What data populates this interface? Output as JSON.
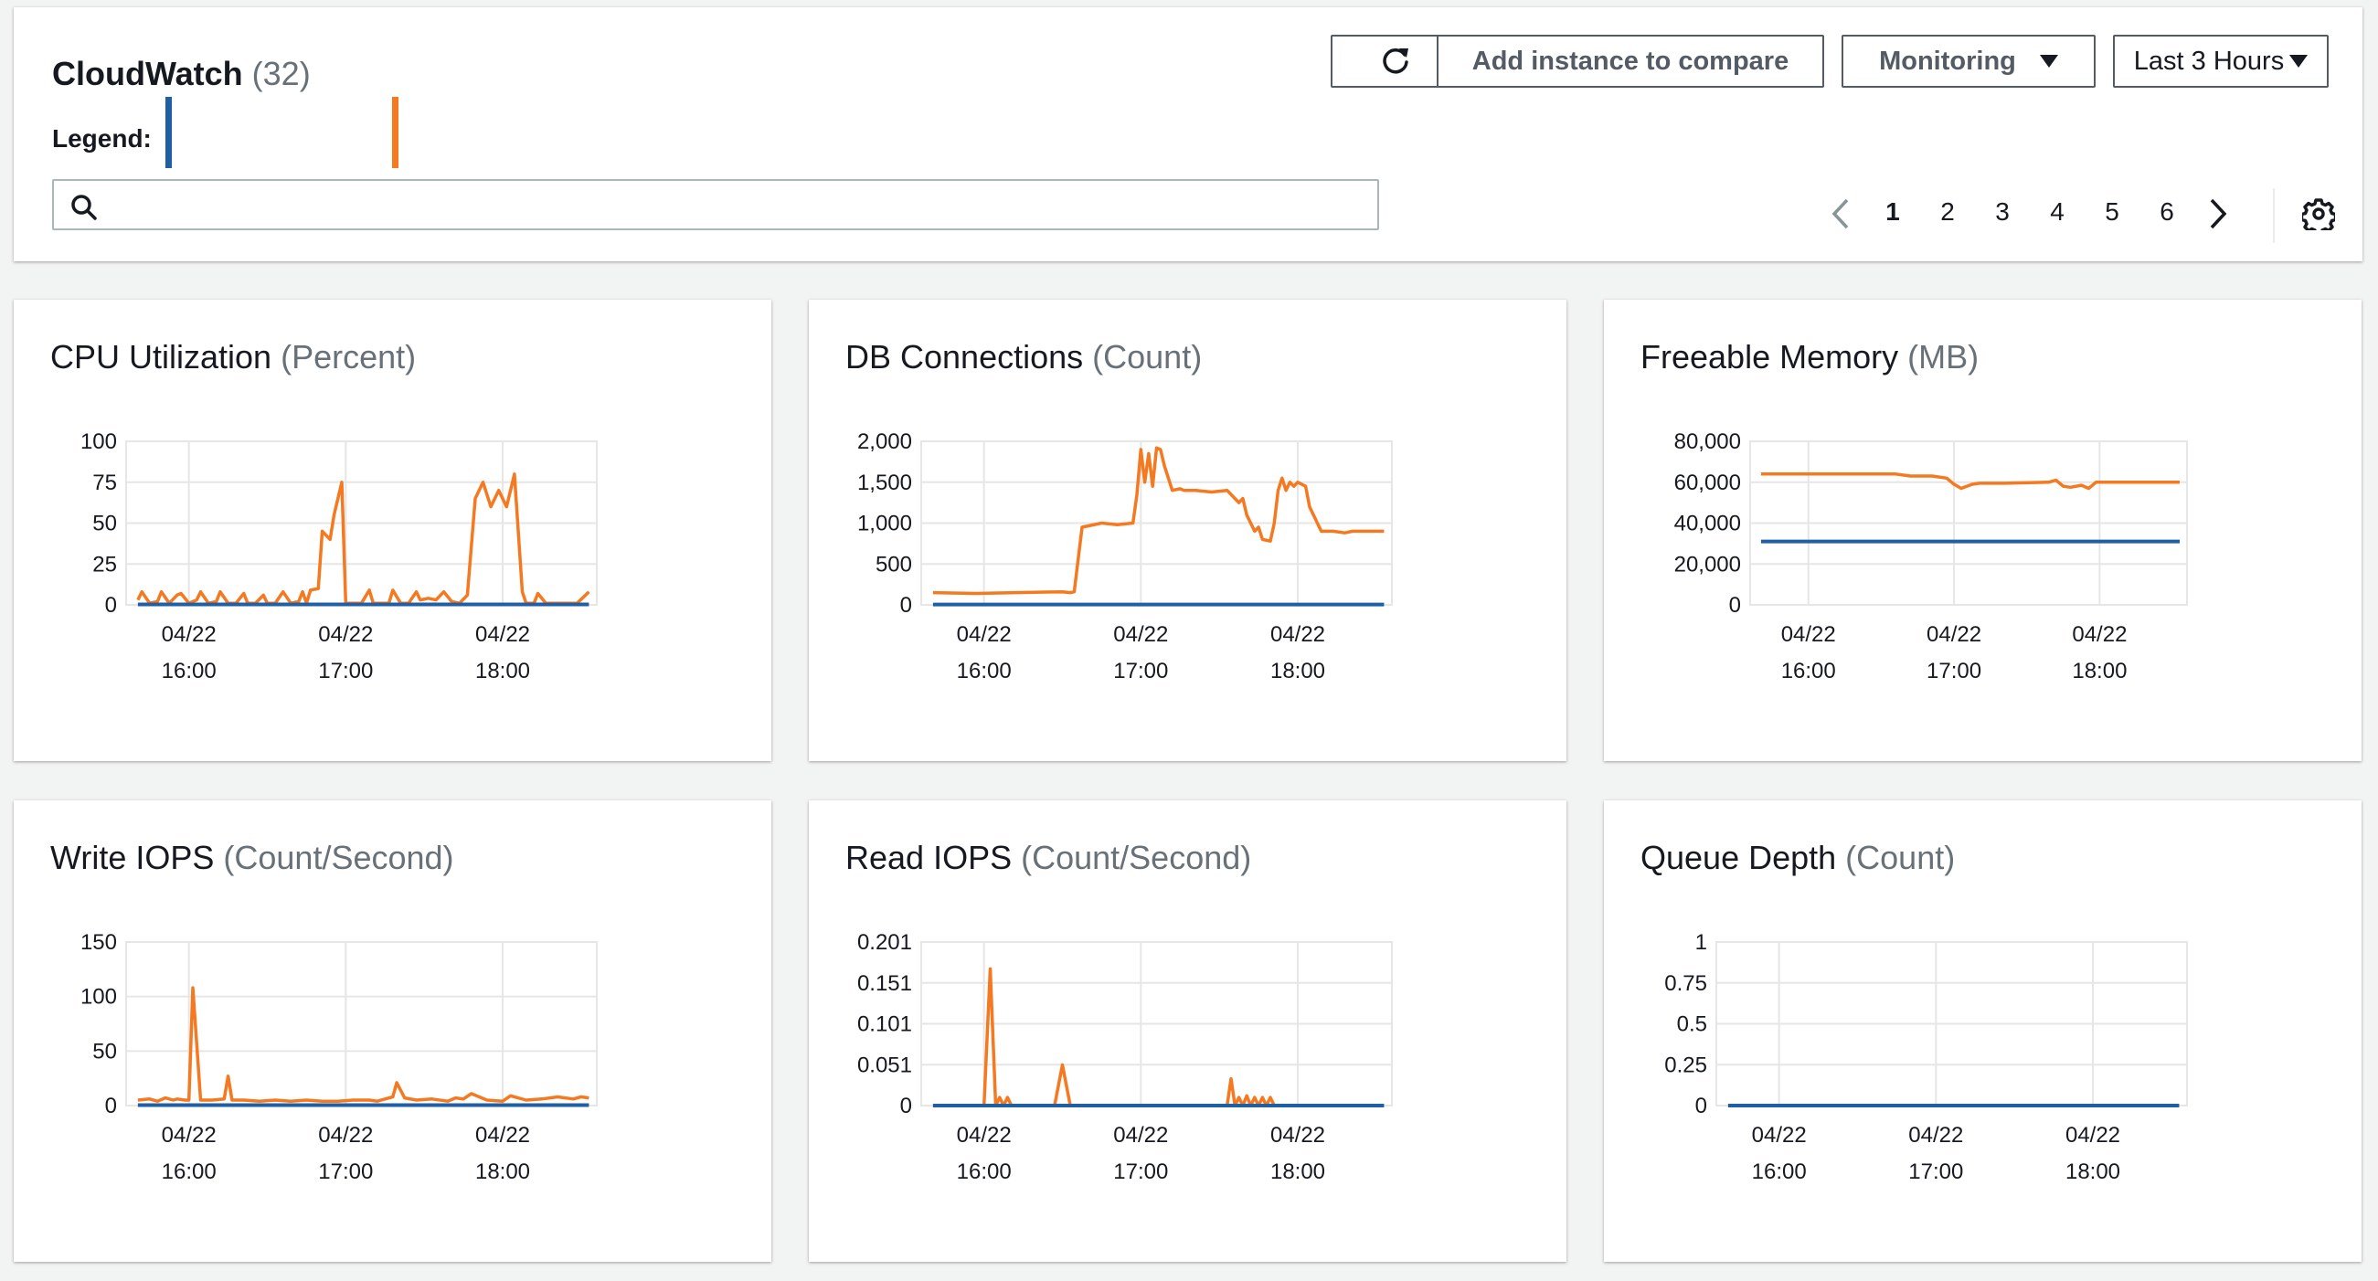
{
  "header": {
    "title": "CloudWatch",
    "count": "(32)",
    "legend_label": "Legend:",
    "legend_colors": [
      "#1f5fa6",
      "#f47920"
    ],
    "search": {
      "value": "",
      "placeholder": ""
    },
    "buttons": {
      "refresh_icon": "refresh-icon",
      "add_instance": "Add instance to compare",
      "monitoring": "Monitoring",
      "time_range": "Last 3 Hours"
    },
    "pagination": {
      "pages": [
        "1",
        "2",
        "3",
        "4",
        "5",
        "6"
      ],
      "current": "1",
      "prev_icon": "chevron-left-icon",
      "next_icon": "chevron-right-icon",
      "settings_icon": "gear-icon"
    }
  },
  "colors": {
    "series_blue": "#1f5fa6",
    "series_orange": "#f47920",
    "grid": "#e6e6e6",
    "muted_text": "#687078"
  },
  "charts": [
    {
      "id": "cpu",
      "title": "CPU Utilization",
      "unit": "(Percent)",
      "chart_data": {
        "type": "line",
        "y_ticks": [
          "100",
          "75",
          "50",
          "25",
          "0"
        ],
        "ylim": [
          0,
          100
        ],
        "x_ticks": [
          [
            "04/22",
            "16:00"
          ],
          [
            "04/22",
            "17:00"
          ],
          [
            "04/22",
            "18:00"
          ]
        ],
        "x_tick_positions": [
          15.6,
          17.6,
          19.6
        ],
        "xlim": [
          14.8,
          20.8
        ],
        "series": [
          {
            "color": "#f47920",
            "x": [
              14.95,
              15.0,
              15.1,
              15.2,
              15.25,
              15.35,
              15.45,
              15.5,
              15.6,
              15.7,
              15.75,
              15.85,
              15.95,
              16.0,
              16.1,
              16.2,
              16.3,
              16.35,
              16.45,
              16.55,
              16.6,
              16.7,
              16.8,
              16.9,
              17.0,
              17.05,
              17.1,
              17.15,
              17.25,
              17.3,
              17.4,
              17.45,
              17.55,
              17.6,
              17.7,
              17.8,
              17.9,
              17.95,
              18.05,
              18.15,
              18.2,
              18.3,
              18.4,
              18.5,
              18.55,
              18.65,
              18.75,
              18.85,
              18.95,
              19.05,
              19.15,
              19.25,
              19.35,
              19.45,
              19.55,
              19.65,
              19.75,
              19.85,
              19.9,
              20.0,
              20.05,
              20.15,
              20.25,
              20.35,
              20.45,
              20.55,
              20.7
            ],
            "values": [
              3,
              8,
              1,
              2,
              8,
              1,
              6,
              7,
              1,
              3,
              8,
              1,
              2,
              8,
              1,
              1,
              7,
              1,
              1,
              6,
              1,
              1,
              8,
              1,
              2,
              8,
              1,
              9,
              10,
              45,
              40,
              55,
              75,
              1,
              1,
              1,
              9,
              1,
              1,
              1,
              9,
              1,
              1,
              8,
              3,
              4,
              3,
              8,
              2,
              1,
              6,
              65,
              75,
              60,
              70,
              60,
              80,
              8,
              1,
              1,
              7,
              1,
              1,
              1,
              1,
              1,
              8
            ]
          },
          {
            "color": "#1f5fa6",
            "x": [
              14.95,
              20.7
            ],
            "values": [
              0.3,
              0.3
            ]
          }
        ]
      }
    },
    {
      "id": "db",
      "title": "DB Connections",
      "unit": "(Count)",
      "chart_data": {
        "type": "line",
        "y_ticks": [
          "2,000",
          "1,500",
          "1,000",
          "500",
          "0"
        ],
        "ylim": [
          0,
          2000
        ],
        "x_ticks": [
          [
            "04/22",
            "16:00"
          ],
          [
            "04/22",
            "17:00"
          ],
          [
            "04/22",
            "18:00"
          ]
        ],
        "x_tick_positions": [
          15.6,
          17.6,
          19.6
        ],
        "xlim": [
          14.8,
          20.8
        ],
        "series": [
          {
            "color": "#f47920",
            "x": [
              14.95,
              15.5,
              16.0,
              16.6,
              16.7,
              16.75,
              16.85,
              17.1,
              17.3,
              17.5,
              17.55,
              17.6,
              17.65,
              17.7,
              17.75,
              17.8,
              17.85,
              17.9,
              18.0,
              18.1,
              18.15,
              18.3,
              18.5,
              18.7,
              18.85,
              18.9,
              18.95,
              19.05,
              19.1,
              19.15,
              19.25,
              19.3,
              19.35,
              19.4,
              19.45,
              19.5,
              19.55,
              19.6,
              19.7,
              19.75,
              19.9,
              20.05,
              20.2,
              20.3,
              20.7
            ],
            "values": [
              150,
              140,
              150,
              160,
              150,
              160,
              950,
              1000,
              980,
              1000,
              1350,
              1900,
              1500,
              1850,
              1450,
              1920,
              1900,
              1700,
              1400,
              1420,
              1400,
              1400,
              1380,
              1400,
              1250,
              1300,
              1100,
              900,
              950,
              800,
              780,
              1000,
              1400,
              1550,
              1400,
              1500,
              1450,
              1500,
              1450,
              1200,
              900,
              900,
              880,
              900,
              900
            ]
          },
          {
            "color": "#1f5fa6",
            "x": [
              14.95,
              20.7
            ],
            "values": [
              5,
              5
            ]
          }
        ]
      }
    },
    {
      "id": "mem",
      "title": "Freeable Memory",
      "unit": "(MB)",
      "chart_data": {
        "type": "line",
        "y_ticks": [
          "80,000",
          "60,000",
          "40,000",
          "20,000",
          "0"
        ],
        "ylim": [
          0,
          80000
        ],
        "x_ticks": [
          [
            "04/22",
            "16:00"
          ],
          [
            "04/22",
            "17:00"
          ],
          [
            "04/22",
            "18:00"
          ]
        ],
        "x_tick_positions": [
          15.6,
          17.6,
          19.6
        ],
        "xlim": [
          14.8,
          20.8
        ],
        "series": [
          {
            "color": "#f47920",
            "x": [
              14.95,
              16.8,
              17.0,
              17.3,
              17.5,
              17.6,
              17.7,
              17.85,
              17.95,
              18.3,
              18.9,
              19.0,
              19.1,
              19.2,
              19.35,
              19.45,
              19.55,
              20.7
            ],
            "values": [
              64000,
              64000,
              63000,
              63000,
              62000,
              59000,
              57000,
              59000,
              59500,
              59500,
              60000,
              61000,
              58000,
              57500,
              58500,
              57000,
              60000,
              60000
            ]
          },
          {
            "color": "#1f5fa6",
            "x": [
              14.95,
              20.7
            ],
            "values": [
              31000,
              31000
            ]
          }
        ]
      }
    },
    {
      "id": "write",
      "title": "Write IOPS",
      "unit": "(Count/Second)",
      "chart_data": {
        "type": "line",
        "y_ticks": [
          "150",
          "100",
          "50",
          "0"
        ],
        "ylim": [
          0,
          150
        ],
        "x_ticks": [
          [
            "04/22",
            "16:00"
          ],
          [
            "04/22",
            "17:00"
          ],
          [
            "04/22",
            "18:00"
          ]
        ],
        "x_tick_positions": [
          15.6,
          17.6,
          19.6
        ],
        "xlim": [
          14.8,
          20.8
        ],
        "series": [
          {
            "color": "#f47920",
            "x": [
              14.95,
              15.1,
              15.2,
              15.3,
              15.4,
              15.45,
              15.55,
              15.6,
              15.65,
              15.75,
              15.9,
              16.05,
              16.1,
              16.15,
              16.3,
              16.5,
              16.7,
              16.9,
              17.1,
              17.3,
              17.5,
              17.7,
              17.9,
              18.0,
              18.1,
              18.2,
              18.25,
              18.35,
              18.5,
              18.7,
              18.9,
              19.0,
              19.1,
              19.2,
              19.4,
              19.6,
              19.7,
              19.9,
              20.1,
              20.3,
              20.5,
              20.6,
              20.7
            ],
            "values": [
              5,
              6,
              4,
              7,
              5,
              6,
              5,
              5,
              108,
              5,
              5,
              6,
              27,
              5,
              5,
              4,
              5,
              4,
              5,
              4,
              4,
              5,
              5,
              4,
              6,
              8,
              21,
              7,
              5,
              6,
              4,
              7,
              6,
              11,
              5,
              4,
              9,
              5,
              6,
              8,
              6,
              8,
              7
            ]
          },
          {
            "color": "#1f5fa6",
            "x": [
              14.95,
              20.7
            ],
            "values": [
              0.4,
              0.4
            ]
          }
        ]
      }
    },
    {
      "id": "read",
      "title": "Read IOPS",
      "unit": "(Count/Second)",
      "chart_data": {
        "type": "line",
        "y_ticks": [
          "0.201",
          "0.151",
          "0.101",
          "0.051",
          "0"
        ],
        "ylim": [
          0,
          0.201
        ],
        "x_ticks": [
          [
            "04/22",
            "16:00"
          ],
          [
            "04/22",
            "17:00"
          ],
          [
            "04/22",
            "18:00"
          ]
        ],
        "x_tick_positions": [
          15.6,
          17.6,
          19.6
        ],
        "xlim": [
          14.8,
          20.8
        ],
        "series": [
          {
            "color": "#f47920",
            "x": [
              14.95,
              15.6,
              15.68,
              15.75,
              15.8,
              15.85,
              15.9,
              15.95,
              16.0,
              16.05,
              16.5,
              16.6,
              16.7,
              17.8,
              18.7,
              18.75,
              18.8,
              18.85,
              18.9,
              18.95,
              19.0,
              19.05,
              19.1,
              19.15,
              19.2,
              19.25,
              19.3,
              20.7
            ],
            "values": [
              0,
              0,
              0.168,
              0,
              0.01,
              0,
              0.01,
              0,
              0,
              0,
              0,
              0.05,
              0,
              0,
              0,
              0.033,
              0,
              0.01,
              0,
              0.012,
              0,
              0.01,
              0,
              0.01,
              0,
              0.01,
              0,
              0
            ]
          },
          {
            "color": "#1f5fa6",
            "x": [
              14.95,
              20.7
            ],
            "values": [
              0,
              0
            ]
          }
        ]
      }
    },
    {
      "id": "queue",
      "title": "Queue Depth",
      "unit": "(Count)",
      "chart_data": {
        "type": "line",
        "y_ticks": [
          "1",
          "0.75",
          "0.5",
          "0.25",
          "0"
        ],
        "ylim": [
          0,
          1
        ],
        "x_ticks": [
          [
            "04/22",
            "16:00"
          ],
          [
            "04/22",
            "17:00"
          ],
          [
            "04/22",
            "18:00"
          ]
        ],
        "x_tick_positions": [
          15.6,
          17.6,
          19.6
        ],
        "xlim": [
          14.8,
          20.8
        ],
        "series": [
          {
            "color": "#f47920",
            "x": [
              14.95,
              20.7
            ],
            "values": [
              0,
              0
            ]
          },
          {
            "color": "#1f5fa6",
            "x": [
              14.95,
              20.7
            ],
            "values": [
              0,
              0
            ]
          }
        ]
      }
    }
  ]
}
